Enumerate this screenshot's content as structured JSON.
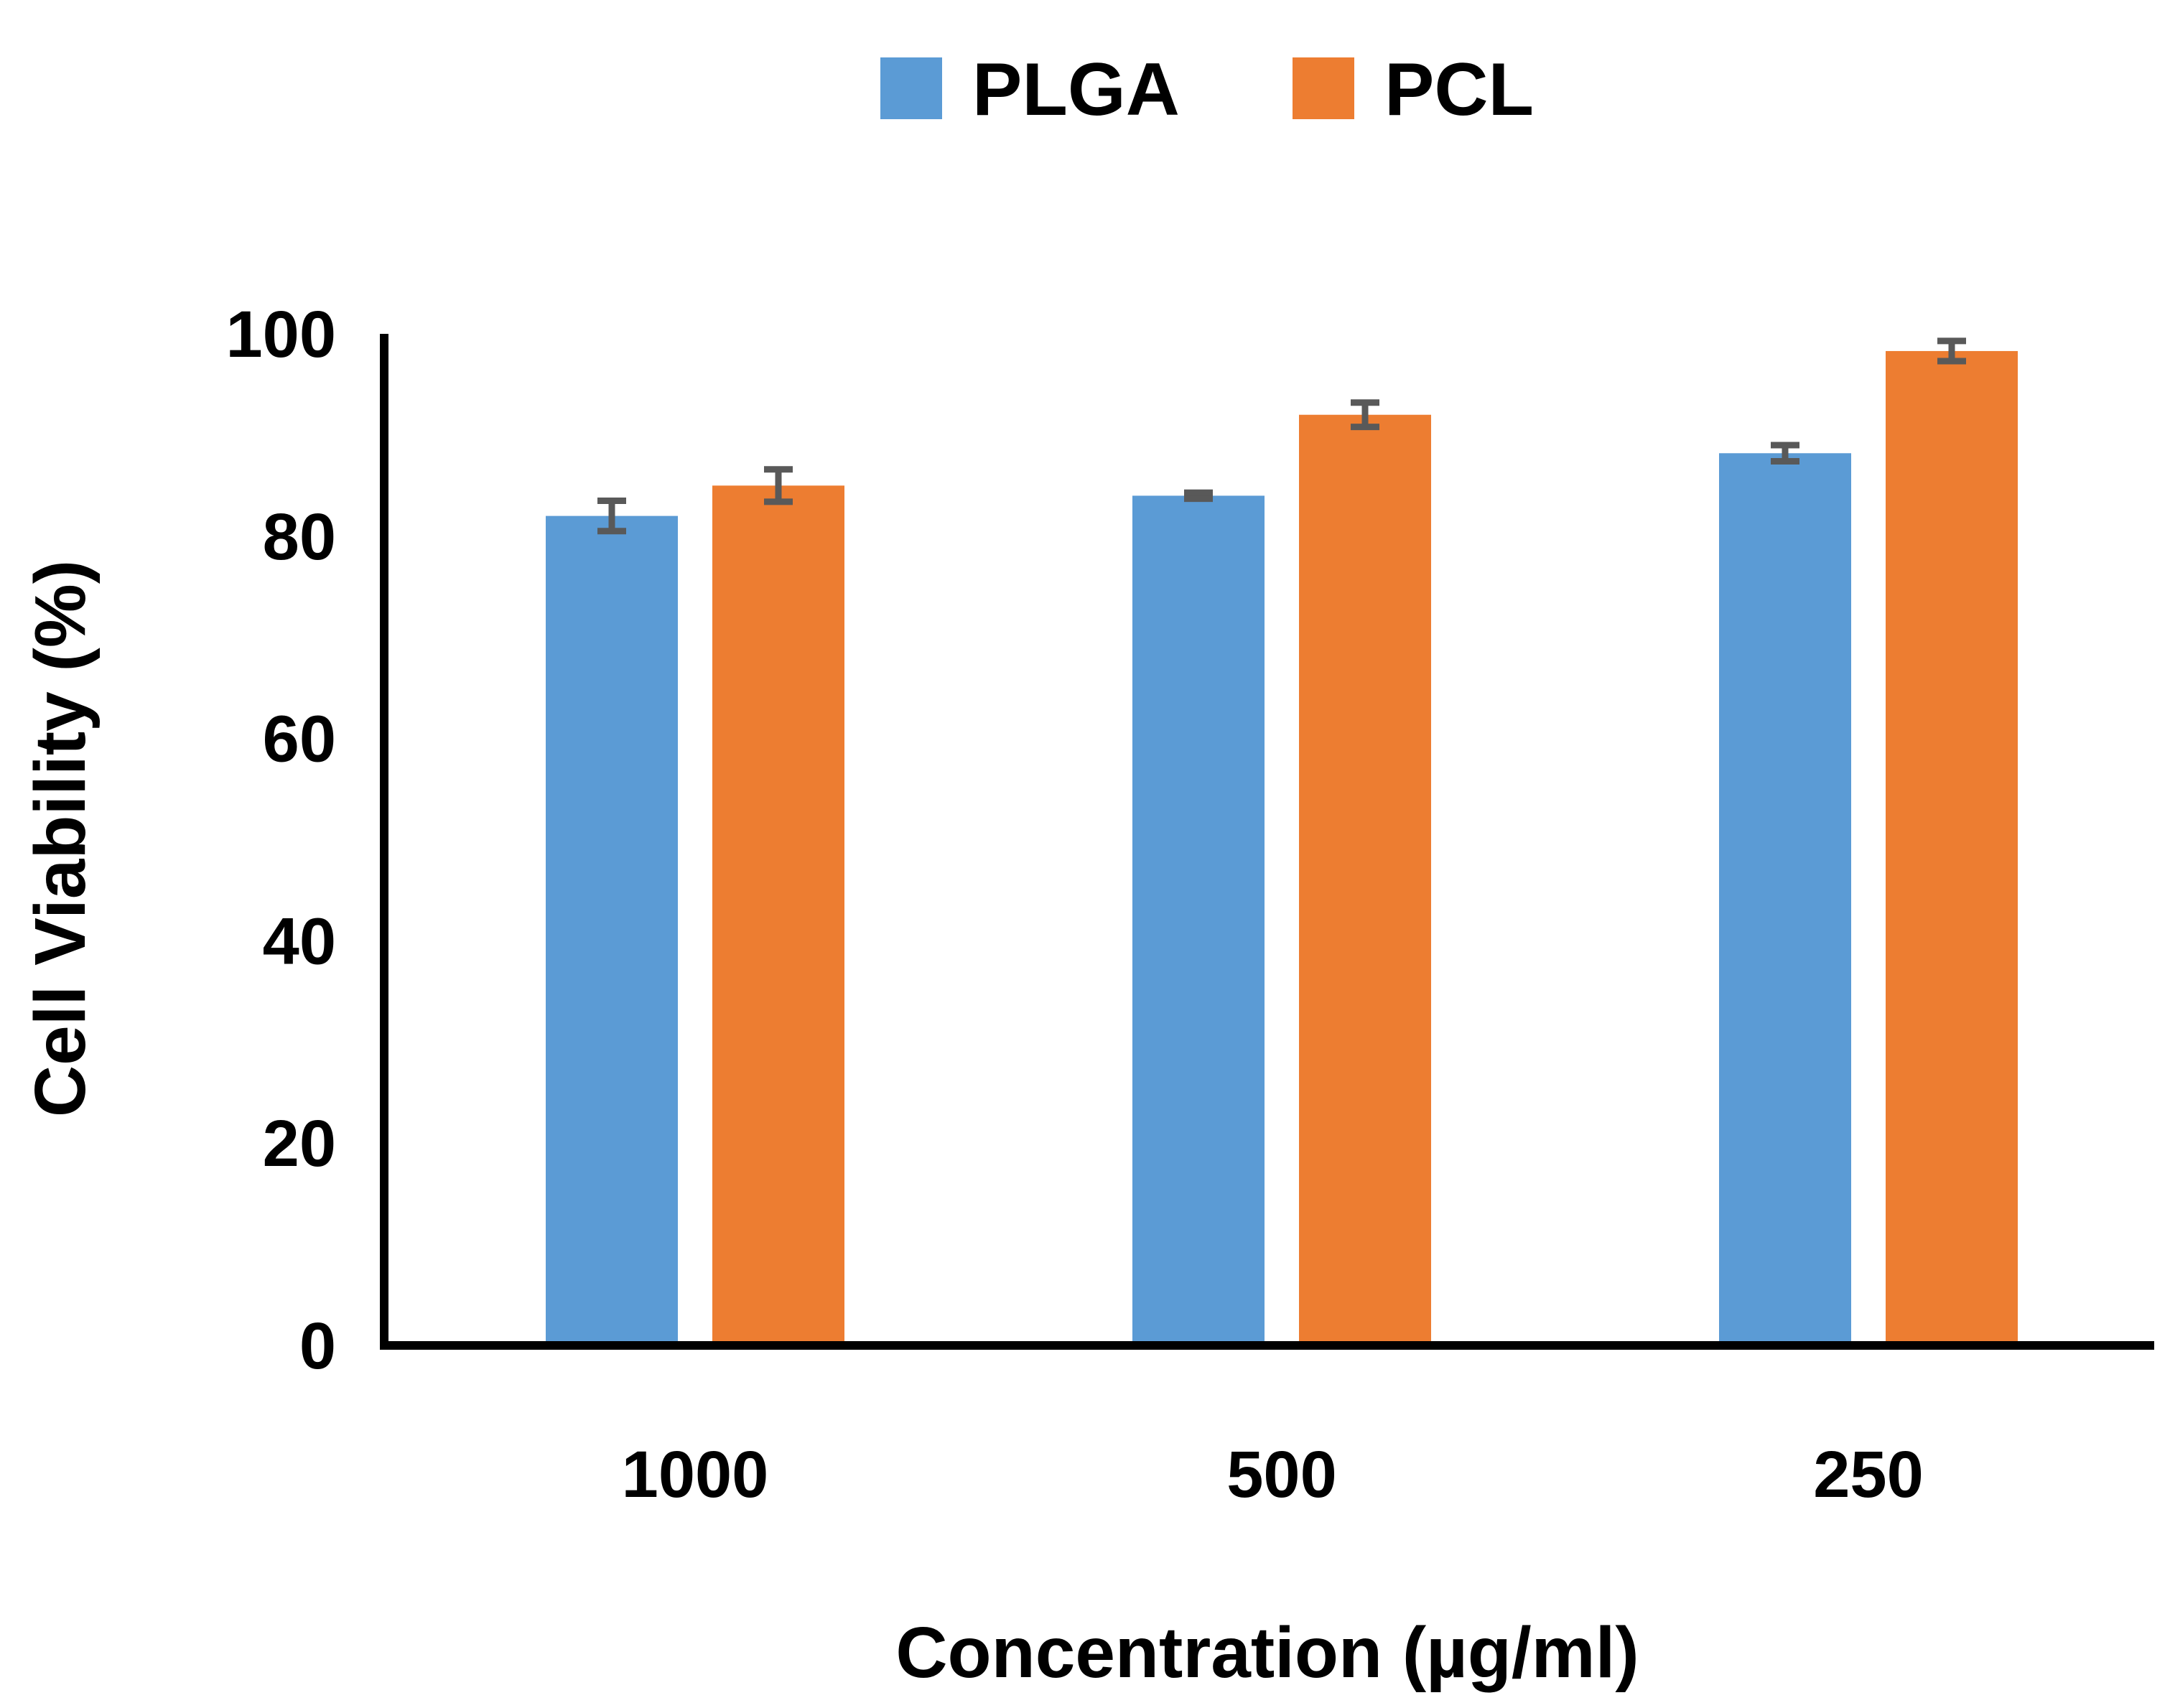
{
  "chart_data": {
    "type": "bar",
    "title": "",
    "xlabel": "Concentration (µg/ml)",
    "ylabel": "Cell Viability (%)",
    "categories": [
      "1000",
      "500",
      "250"
    ],
    "series": [
      {
        "name": "PLGA",
        "color": "#5B9BD5",
        "values": [
          82.0,
          84.0,
          88.2
        ],
        "errors": [
          1.5,
          0.3,
          0.8
        ]
      },
      {
        "name": "PCL",
        "color": "#ED7D31",
        "values": [
          85.0,
          92.0,
          98.3
        ],
        "errors": [
          1.6,
          1.2,
          1.0
        ]
      }
    ],
    "ylim": [
      0,
      100
    ],
    "yticks": [
      0,
      20,
      40,
      60,
      80,
      100
    ],
    "error_bar_color": "#595959",
    "grid": false,
    "legend_position": "top-center"
  }
}
